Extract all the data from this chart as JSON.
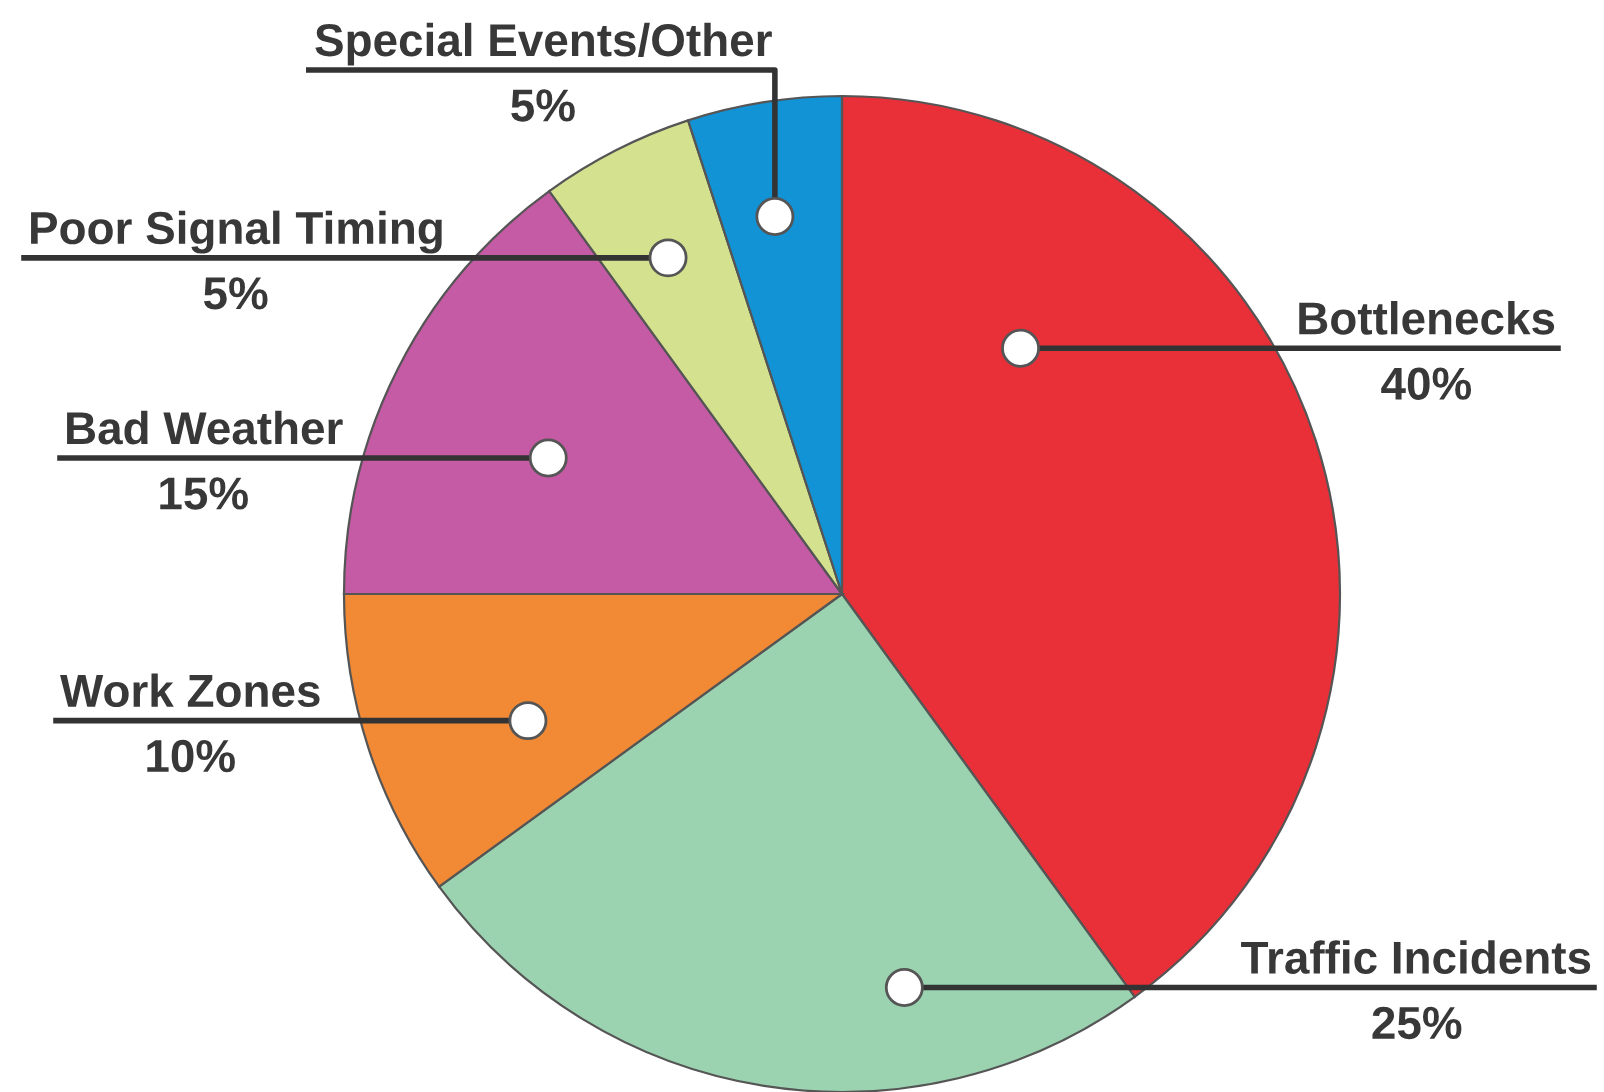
{
  "chart_data": {
    "type": "pie",
    "categories": [
      "Bottlenecks",
      "Traffic Incidents",
      "Work Zones",
      "Bad Weather",
      "Poor Signal Timing",
      "Special Events/Other"
    ],
    "values": [
      40,
      25,
      10,
      15,
      5,
      5
    ],
    "colors": [
      "#e93038",
      "#9bd3b1",
      "#f28a35",
      "#c55ba4",
      "#d4e28f",
      "#1193d6"
    ],
    "value_labels": [
      "40%",
      "25%",
      "10%",
      "15%",
      "5%",
      "5%"
    ]
  }
}
